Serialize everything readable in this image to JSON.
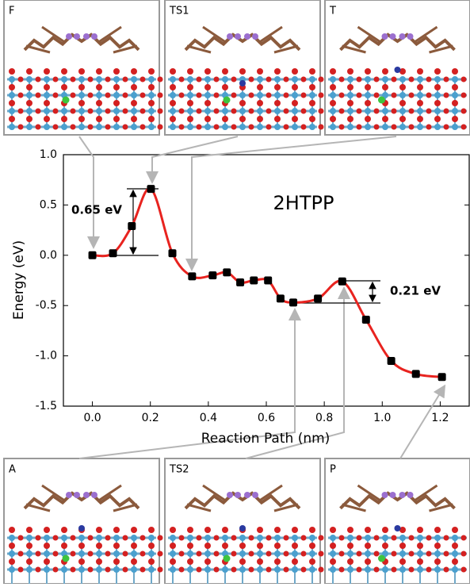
{
  "chart_data": {
    "type": "line",
    "x": [
      0.0,
      0.071,
      0.136,
      0.202,
      0.276,
      0.344,
      0.415,
      0.464,
      0.51,
      0.557,
      0.606,
      0.649,
      0.693,
      0.778,
      0.862,
      0.944,
      1.031,
      1.116,
      1.206
    ],
    "series": [
      {
        "color": "#e8231f",
        "marker_color": "#000000",
        "values": [
          0.0,
          0.02,
          0.29,
          0.66,
          0.02,
          -0.21,
          -0.2,
          -0.17,
          -0.27,
          -0.25,
          -0.25,
          -0.43,
          -0.47,
          -0.43,
          -0.26,
          -0.64,
          -1.05,
          -1.18,
          -1.21
        ]
      }
    ],
    "xlabel": "Reaction Path (nm)",
    "ylabel": "Energy (eV)",
    "xlim": [
      -0.1,
      1.3
    ],
    "ylim": [
      -1.5,
      1.0
    ],
    "xticks": [
      {
        "value": 0,
        "label": "0.0"
      },
      0.2,
      0.4,
      0.6,
      0.8,
      {
        "value": 1,
        "label": "1.0"
      },
      1.2
    ],
    "yticks": [
      {
        "value": 1,
        "label": "1.0"
      },
      0.5,
      {
        "value": 0,
        "label": "0.0"
      },
      -0.5,
      {
        "value": -1,
        "label": "-1.0"
      },
      -1.5
    ],
    "annotations": [
      "2HTPP",
      "0.65 eV",
      "0.21 eV"
    ]
  },
  "panels": [
    "F",
    "TS1",
    "T",
    "A",
    "TS2",
    "P"
  ]
}
